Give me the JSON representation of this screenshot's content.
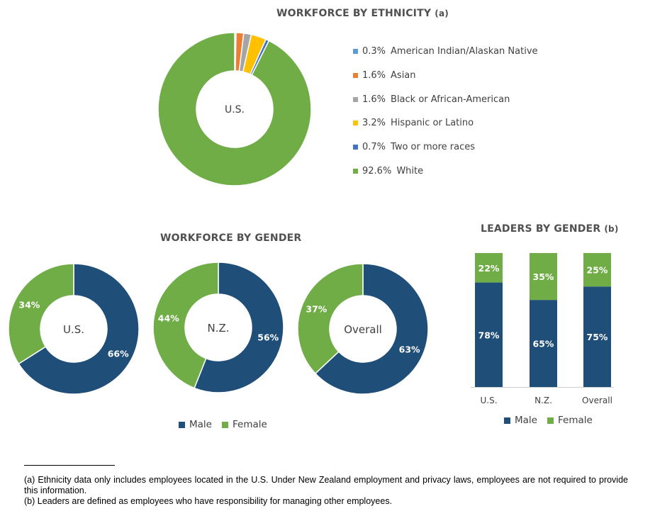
{
  "colors": {
    "male": "#1f4e79",
    "female": "#70ad47",
    "american_indian": "#5b9bd5",
    "asian": "#ed7d31",
    "black": "#a5a5a5",
    "hispanic": "#ffc000",
    "two_or_more": "#4472c4",
    "white": "#70ad47"
  },
  "chart_data": [
    {
      "type": "pie",
      "variant": "donut",
      "title": "WORKFORCE BY ETHNICITY",
      "title_note": "(a)",
      "center_label": "U.S.",
      "legend_position": "right",
      "slices": [
        {
          "label": "American Indian/Alaskan Native",
          "value": 0.3,
          "value_label": "0.3%",
          "color": "#5b9bd5"
        },
        {
          "label": "Asian",
          "value": 1.6,
          "value_label": "1.6%",
          "color": "#ed7d31"
        },
        {
          "label": "Black or African-American",
          "value": 1.6,
          "value_label": "1.6%",
          "color": "#a5a5a5"
        },
        {
          "label": "Hispanic or Latino",
          "value": 3.2,
          "value_label": "3.2%",
          "color": "#ffc000"
        },
        {
          "label": "Two or more races",
          "value": 0.7,
          "value_label": "0.7%",
          "color": "#4472c4"
        },
        {
          "label": "White",
          "value": 92.6,
          "value_label": "92.6%",
          "color": "#70ad47"
        }
      ]
    },
    {
      "type": "pie",
      "variant": "donut-group",
      "title": "WORKFORCE BY GENDER",
      "legend_position": "bottom",
      "legend": [
        "Male",
        "Female"
      ],
      "charts": [
        {
          "center_label": "U.S.",
          "male": 66,
          "female": 34,
          "male_label": "66%",
          "female_label": "34%"
        },
        {
          "center_label": "N.Z.",
          "male": 56,
          "female": 44,
          "male_label": "56%",
          "female_label": "44%"
        },
        {
          "center_label": "Overall",
          "male": 63,
          "female": 37,
          "male_label": "63%",
          "female_label": "37%"
        }
      ]
    },
    {
      "type": "bar",
      "variant": "stacked-100",
      "title": "LEADERS BY GENDER",
      "title_note": "(b)",
      "legend_position": "bottom",
      "categories": [
        "U.S.",
        "N.Z.",
        "Overall"
      ],
      "series": [
        {
          "name": "Male",
          "values": [
            78,
            65,
            75
          ],
          "labels": [
            "78%",
            "65%",
            "75%"
          ],
          "color": "#1f4e79"
        },
        {
          "name": "Female",
          "values": [
            22,
            35,
            25
          ],
          "labels": [
            "22%",
            "35%",
            "25%"
          ],
          "color": "#70ad47"
        }
      ],
      "ylim": [
        0,
        100
      ]
    }
  ],
  "footnotes": {
    "a": "(a) Ethnicity data only includes employees located in the U.S. Under New Zealand employment and privacy laws, employees are not required to provide this information.",
    "b": "(b) Leaders are defined as employees who have responsibility for managing other employees."
  }
}
